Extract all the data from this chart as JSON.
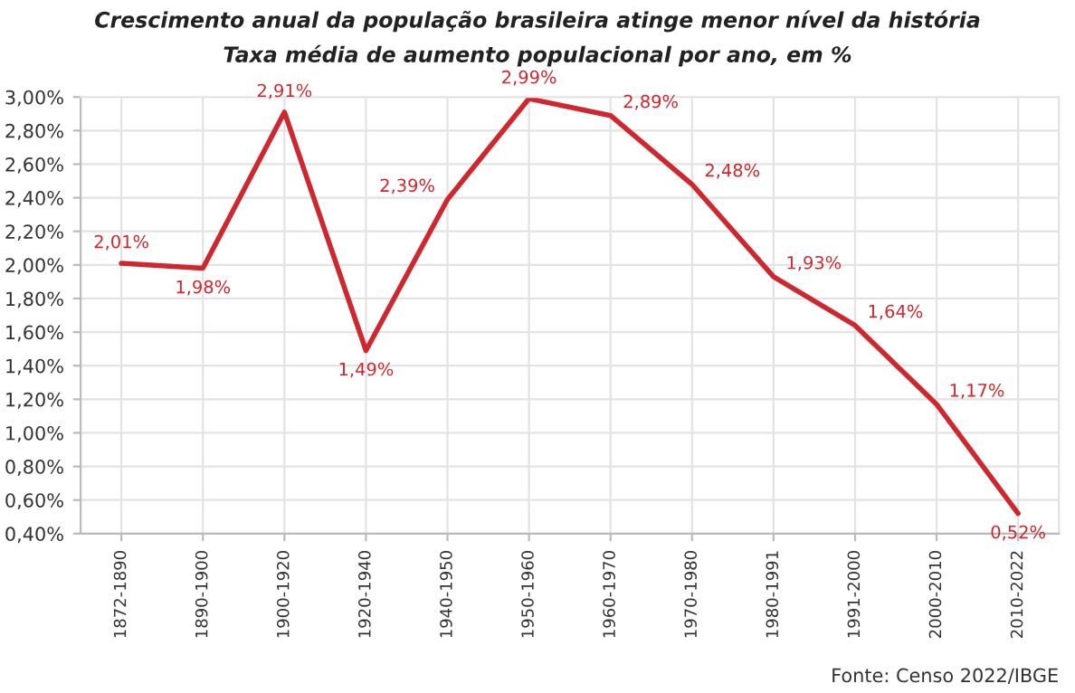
{
  "chart_data": {
    "type": "line",
    "title": "Crescimento anual da população brasileira atinge menor nível da história",
    "subtitle": "Taxa média de aumento populacional por ano, em %",
    "categories": [
      "1872-1890",
      "1890-1900",
      "1900-1920",
      "1920-1940",
      "1940-1950",
      "1950-1960",
      "1960-1970",
      "1970-1980",
      "1980-1991",
      "1991-2000",
      "2000-2010",
      "2010-2022"
    ],
    "series": [
      {
        "color": "#d0272e",
        "values": [
          2.01,
          1.98,
          2.91,
          1.49,
          2.39,
          2.99,
          2.89,
          2.48,
          1.93,
          1.64,
          1.17,
          0.52
        ],
        "value_labels": [
          "2,01%",
          "1,98%",
          "2,91%",
          "1,49%",
          "2,39%",
          "2,99%",
          "2,89%",
          "2,48%",
          "1,93%",
          "1,64%",
          "1,17%",
          "0,52%"
        ]
      }
    ],
    "ylim": [
      0.4,
      3.0
    ],
    "yticks": [
      {
        "value": 0.4,
        "label": "0,40%"
      },
      {
        "value": 0.6,
        "label": "0,60%"
      },
      {
        "value": 0.8,
        "label": "0,80%"
      },
      {
        "value": 1.0,
        "label": "1,00%"
      },
      {
        "value": 1.2,
        "label": "1,20%"
      },
      {
        "value": 1.4,
        "label": "1,40%"
      },
      {
        "value": 1.6,
        "label": "1,60%"
      },
      {
        "value": 1.8,
        "label": "1,80%"
      },
      {
        "value": 2.0,
        "label": "2,00%"
      },
      {
        "value": 2.2,
        "label": "2,20%"
      },
      {
        "value": 2.4,
        "label": "2,40%"
      },
      {
        "value": 2.6,
        "label": "2,60%"
      },
      {
        "value": 2.8,
        "label": "2,80%"
      },
      {
        "value": 3.0,
        "label": "3,00%"
      }
    ],
    "grid": true,
    "line_style": "solid",
    "annotations": [
      "Fonte: Censo 2022/IBGE"
    ]
  }
}
